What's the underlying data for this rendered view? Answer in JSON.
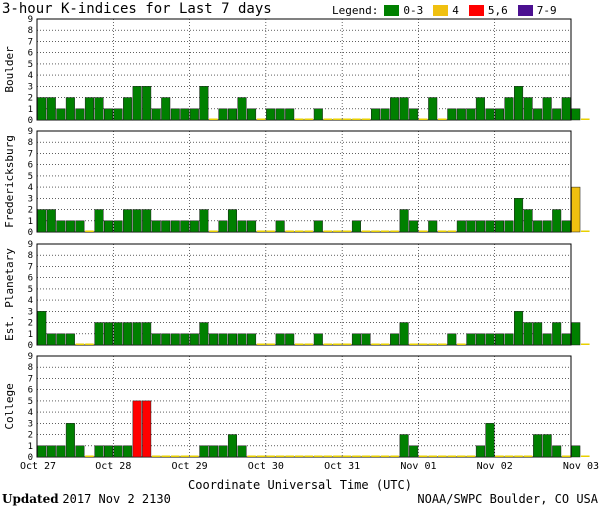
{
  "header": {
    "title": "3-hour K-indices for Last 7 days",
    "legend_label": "Legend:",
    "legend": [
      {
        "label": "0-3",
        "color": "#008000"
      },
      {
        "label": "4",
        "color": "#f0c010"
      },
      {
        "label": "5,6",
        "color": "#ff0000"
      },
      {
        "label": "7-9",
        "color": "#4b1090"
      }
    ]
  },
  "footer": {
    "updated_label": "Updated",
    "updated_value": "2017 Nov  2 2130",
    "credit": "NOAA/SWPC Boulder, CO USA"
  },
  "chart_data": {
    "type": "bar",
    "title": "3-hour K-indices for Last 7 days",
    "xlabel": "Coordinate Universal Time (UTC)",
    "x_ticks": [
      "Oct 27",
      "Oct 28",
      "Oct 29",
      "Oct 30",
      "Oct 31",
      "Nov 01",
      "Nov 02",
      "Nov 03"
    ],
    "y_ticks": [
      "0",
      "1",
      "2",
      "3",
      "4",
      "5",
      "6",
      "7",
      "8",
      "9"
    ],
    "ylim": [
      0,
      9
    ],
    "intervals_per_day": 8,
    "grid": true,
    "color_scale": {
      "0-3": "#008000",
      "4": "#f0c010",
      "5-6": "#ff0000",
      "7-9": "#4b1090"
    },
    "panels": [
      {
        "name": "Boulder",
        "values": [
          2,
          2,
          1,
          2,
          1,
          2,
          2,
          1,
          1,
          2,
          3,
          3,
          1,
          2,
          1,
          1,
          1,
          3,
          0,
          1,
          1,
          2,
          1,
          0,
          1,
          1,
          1,
          0,
          0,
          1,
          0,
          0,
          0,
          0,
          0,
          1,
          1,
          2,
          2,
          1,
          0,
          2,
          0,
          1,
          1,
          1,
          2,
          1,
          1,
          2,
          3,
          2,
          1,
          2,
          1,
          2,
          1,
          0
        ]
      },
      {
        "name": "Fredericksburg",
        "values": [
          2,
          2,
          1,
          1,
          1,
          0,
          2,
          1,
          1,
          2,
          2,
          2,
          1,
          1,
          1,
          1,
          1,
          2,
          0,
          1,
          2,
          1,
          1,
          0,
          0,
          1,
          0,
          0,
          0,
          1,
          0,
          0,
          0,
          1,
          0,
          0,
          0,
          0,
          2,
          1,
          0,
          1,
          0,
          0,
          1,
          1,
          1,
          1,
          1,
          1,
          3,
          2,
          1,
          1,
          2,
          1,
          4,
          0
        ]
      },
      {
        "name": "Est. Planetary",
        "values": [
          3,
          1,
          1,
          1,
          0,
          0,
          2,
          2,
          2,
          2,
          2,
          2,
          1,
          1,
          1,
          1,
          1,
          2,
          1,
          1,
          1,
          1,
          1,
          0,
          0,
          1,
          1,
          0,
          0,
          1,
          0,
          0,
          0,
          1,
          1,
          0,
          0,
          1,
          2,
          0,
          0,
          0,
          0,
          1,
          0,
          1,
          1,
          1,
          1,
          1,
          3,
          2,
          2,
          1,
          2,
          1,
          2,
          0
        ]
      },
      {
        "name": "College",
        "values": [
          1,
          1,
          1,
          3,
          1,
          0,
          1,
          1,
          1,
          1,
          5,
          5,
          0,
          0,
          0,
          0,
          0,
          1,
          1,
          1,
          2,
          1,
          0,
          0,
          0,
          0,
          0,
          0,
          0,
          0,
          0,
          0,
          0,
          0,
          0,
          0,
          0,
          0,
          2,
          1,
          0,
          0,
          0,
          0,
          0,
          0,
          1,
          3,
          0,
          0,
          0,
          0,
          2,
          2,
          1,
          0,
          1,
          0
        ]
      }
    ]
  }
}
